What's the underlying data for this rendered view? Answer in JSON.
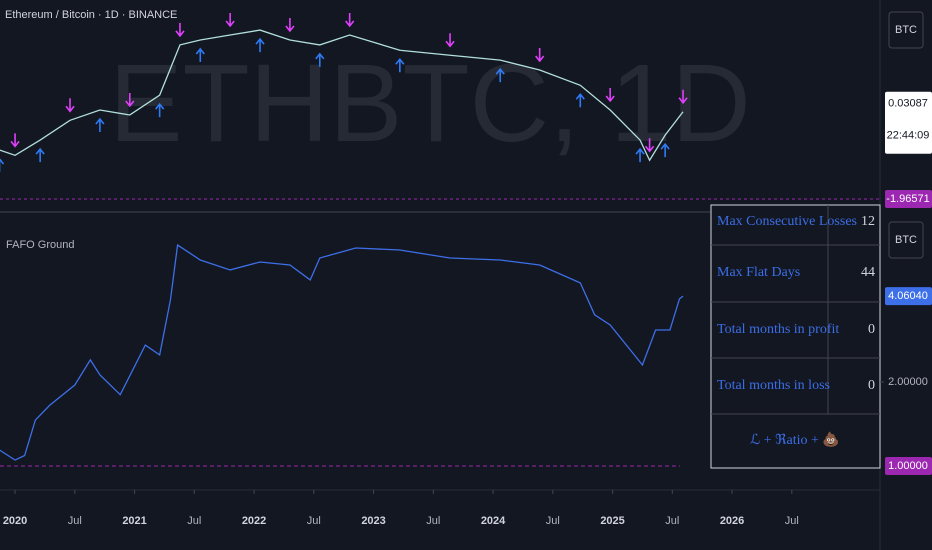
{
  "chart_data": [
    {
      "type": "line",
      "title": "Ethereum / Bitcoin · 1D · BINANCE",
      "watermark": "ETHBTC, 1D",
      "unit": "BTC",
      "x": [
        2019.87,
        2020.0,
        2020.21,
        2020.46,
        2020.71,
        2020.96,
        2021.21,
        2021.38,
        2021.55,
        2021.8,
        2022.05,
        2022.3,
        2022.55,
        2022.8,
        2023.22,
        2023.64,
        2024.06,
        2024.39,
        2024.73,
        2024.98,
        2025.23,
        2025.31,
        2025.44,
        2025.59
      ],
      "series": [
        {
          "color": "#b2dfdb",
          "values": [
            0.0216,
            0.0203,
            0.024,
            0.0288,
            0.0313,
            0.0301,
            0.0349,
            0.0471,
            0.0483,
            0.0495,
            0.0507,
            0.0483,
            0.0471,
            0.0495,
            0.0458,
            0.0446,
            0.0434,
            0.041,
            0.0373,
            0.0313,
            0.024,
            0.0191,
            0.0252,
            0.03087
          ],
          "last_label": "0.03087"
        }
      ],
      "countdown": "22:44:09",
      "signal_colors": [
        "#e040fb",
        "#2f7bf5"
      ],
      "xlim": [
        2019.874,
        2027.238
      ],
      "ylim": [
        0.0131,
        0.058
      ]
    },
    {
      "type": "line",
      "title": "FAFO Ground",
      "unit": "BTC",
      "log_scale": true,
      "x": [
        2019.87,
        2020.0,
        2020.08,
        2020.17,
        2020.29,
        2020.5,
        2020.63,
        2020.71,
        2020.88,
        2021.09,
        2021.21,
        2021.3,
        2021.36,
        2021.55,
        2021.8,
        2022.05,
        2022.3,
        2022.47,
        2022.55,
        2022.85,
        2023.22,
        2023.64,
        2024.06,
        2024.39,
        2024.73,
        2024.85,
        2024.98,
        2025.15,
        2025.25,
        2025.36,
        2025.48,
        2025.56,
        2025.59
      ],
      "series": [
        {
          "color": "#3d6fe8",
          "values": [
            1.14,
            1.05,
            1.09,
            1.46,
            1.65,
            1.95,
            2.4,
            2.12,
            1.8,
            2.71,
            2.5,
            3.93,
            6.19,
            5.47,
            5.04,
            5.38,
            5.25,
            4.64,
            5.56,
            6.04,
            5.94,
            5.56,
            5.47,
            5.25,
            4.53,
            3.48,
            3.2,
            2.6,
            2.3,
            3.07,
            3.07,
            3.97,
            4.0604
          ],
          "last_label": "4.06040"
        }
      ],
      "xlim": [
        2019.874,
        2027.238
      ],
      "ylim": [
        0.82,
        7.93
      ],
      "yticks": [
        {
          "value": 1,
          "label": "1.00000"
        },
        {
          "value": 2,
          "label": "2.00000"
        }
      ],
      "first_tick_color": "#9c27b0",
      "xticks": [
        2020,
        {
          "value": 2020.5,
          "label": "Jul"
        },
        2021,
        {
          "value": 2021.5,
          "label": "Jul"
        },
        2022,
        {
          "value": 2022.5,
          "label": "Jul"
        },
        2023,
        {
          "value": 2023.5,
          "label": "Jul"
        },
        2024,
        {
          "value": 2024.5,
          "label": "Jul"
        },
        2025,
        {
          "value": 2025.5,
          "label": "Jul"
        },
        2026,
        {
          "value": 2026.5,
          "label": "Jul"
        }
      ]
    }
  ],
  "oscillator": {
    "value": -1.96571,
    "color": "#9c27b0"
  },
  "table": {
    "rows": [
      [
        "Max Consecutive Losses",
        "12"
      ],
      [
        "Max Flat Days",
        "44"
      ],
      [
        "Total months in profit",
        "0"
      ],
      [
        "Total months in loss",
        "0"
      ]
    ],
    "footer": "ℒ + ℜatio + 💩"
  }
}
